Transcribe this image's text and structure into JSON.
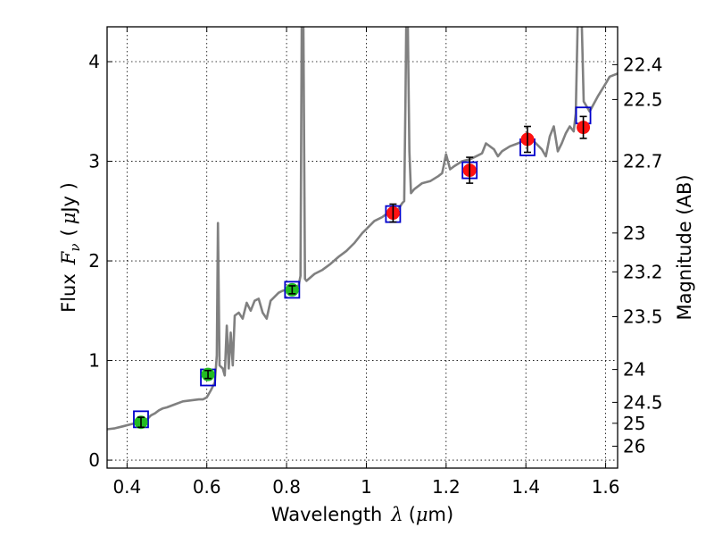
{
  "chart_data": {
    "type": "scatter",
    "xlabel": {
      "text": "Wavelength",
      "symbol": "λ",
      "unit_open": "(",
      "unit_mu": "μ",
      "unit_rest": "m)"
    },
    "ylabel": {
      "text": "Flux",
      "symbol": "F",
      "sub": "ν",
      "unit_open": "(",
      "unit_mu": "μ",
      "unit_rest": "Jy )"
    },
    "y2label": "Magnitude (AB)",
    "xlim": [
      0.35,
      1.63
    ],
    "ylim": [
      -0.08,
      4.35
    ],
    "grid": true,
    "x_ticks": [
      {
        "value": 0.4,
        "label": "0.4"
      },
      {
        "value": 0.6,
        "label": "0.6"
      },
      {
        "value": 0.8,
        "label": "0.8"
      },
      {
        "value": 1.0,
        "label": "1"
      },
      {
        "value": 1.2,
        "label": "1.2"
      },
      {
        "value": 1.4,
        "label": "1.4"
      },
      {
        "value": 1.6,
        "label": "1.6"
      }
    ],
    "y_ticks": [
      {
        "value": 0,
        "label": "0"
      },
      {
        "value": 1,
        "label": "1"
      },
      {
        "value": 2,
        "label": "2"
      },
      {
        "value": 3,
        "label": "3"
      },
      {
        "value": 4,
        "label": "4"
      }
    ],
    "y2_ticks": [
      {
        "flux": 3.97,
        "label": "22.4"
      },
      {
        "flux": 3.62,
        "label": "22.5"
      },
      {
        "flux": 3.0,
        "label": "22.7"
      },
      {
        "flux": 2.28,
        "label": "23"
      },
      {
        "flux": 1.89,
        "label": "23.2"
      },
      {
        "flux": 1.44,
        "label": "23.5"
      },
      {
        "flux": 0.91,
        "label": "24"
      },
      {
        "flux": 0.58,
        "label": "24.5"
      },
      {
        "flux": 0.37,
        "label": "25"
      },
      {
        "flux": 0.14,
        "label": "26"
      }
    ],
    "series": [
      {
        "kind": "line",
        "color": "#808080",
        "points": [
          [
            0.35,
            0.31
          ],
          [
            0.37,
            0.32
          ],
          [
            0.39,
            0.34
          ],
          [
            0.41,
            0.36
          ],
          [
            0.43,
            0.38
          ],
          [
            0.45,
            0.41
          ],
          [
            0.46,
            0.45
          ],
          [
            0.47,
            0.47
          ],
          [
            0.48,
            0.5
          ],
          [
            0.49,
            0.52
          ],
          [
            0.5,
            0.53
          ],
          [
            0.52,
            0.56
          ],
          [
            0.54,
            0.59
          ],
          [
            0.56,
            0.6
          ],
          [
            0.58,
            0.61
          ],
          [
            0.59,
            0.61
          ],
          [
            0.6,
            0.63
          ],
          [
            0.61,
            0.7
          ],
          [
            0.62,
            0.78
          ],
          [
            0.625,
            1.05
          ],
          [
            0.628,
            2.38
          ],
          [
            0.632,
            0.95
          ],
          [
            0.64,
            0.92
          ],
          [
            0.645,
            0.85
          ],
          [
            0.65,
            1.35
          ],
          [
            0.655,
            0.92
          ],
          [
            0.66,
            1.28
          ],
          [
            0.665,
            0.95
          ],
          [
            0.67,
            1.45
          ],
          [
            0.68,
            1.48
          ],
          [
            0.69,
            1.42
          ],
          [
            0.7,
            1.58
          ],
          [
            0.71,
            1.5
          ],
          [
            0.72,
            1.6
          ],
          [
            0.73,
            1.62
          ],
          [
            0.74,
            1.48
          ],
          [
            0.75,
            1.42
          ],
          [
            0.76,
            1.6
          ],
          [
            0.77,
            1.64
          ],
          [
            0.78,
            1.68
          ],
          [
            0.79,
            1.7
          ],
          [
            0.8,
            1.71
          ],
          [
            0.81,
            1.72
          ],
          [
            0.82,
            1.74
          ],
          [
            0.83,
            1.75
          ],
          [
            0.835,
            1.85
          ],
          [
            0.838,
            4.4
          ],
          [
            0.842,
            4.4
          ],
          [
            0.846,
            1.82
          ],
          [
            0.85,
            1.8
          ],
          [
            0.87,
            1.87
          ],
          [
            0.89,
            1.91
          ],
          [
            0.91,
            1.97
          ],
          [
            0.93,
            2.04
          ],
          [
            0.95,
            2.1
          ],
          [
            0.97,
            2.18
          ],
          [
            0.99,
            2.28
          ],
          [
            1.0,
            2.32
          ],
          [
            1.02,
            2.4
          ],
          [
            1.04,
            2.44
          ],
          [
            1.06,
            2.5
          ],
          [
            1.08,
            2.52
          ],
          [
            1.09,
            2.58
          ],
          [
            1.095,
            2.6
          ],
          [
            1.098,
            3.6
          ],
          [
            1.1,
            4.4
          ],
          [
            1.104,
            4.4
          ],
          [
            1.108,
            3.1
          ],
          [
            1.112,
            2.68
          ],
          [
            1.12,
            2.72
          ],
          [
            1.14,
            2.78
          ],
          [
            1.16,
            2.8
          ],
          [
            1.18,
            2.85
          ],
          [
            1.19,
            2.88
          ],
          [
            1.2,
            3.07
          ],
          [
            1.21,
            2.92
          ],
          [
            1.22,
            2.95
          ],
          [
            1.24,
            3.0
          ],
          [
            1.26,
            3.02
          ],
          [
            1.28,
            3.06
          ],
          [
            1.29,
            3.08
          ],
          [
            1.3,
            3.18
          ],
          [
            1.32,
            3.12
          ],
          [
            1.33,
            3.05
          ],
          [
            1.34,
            3.1
          ],
          [
            1.36,
            3.15
          ],
          [
            1.38,
            3.18
          ],
          [
            1.4,
            3.22
          ],
          [
            1.42,
            3.2
          ],
          [
            1.44,
            3.12
          ],
          [
            1.45,
            3.05
          ],
          [
            1.46,
            3.25
          ],
          [
            1.47,
            3.35
          ],
          [
            1.48,
            3.1
          ],
          [
            1.49,
            3.18
          ],
          [
            1.5,
            3.28
          ],
          [
            1.51,
            3.35
          ],
          [
            1.52,
            3.3
          ],
          [
            1.525,
            3.48
          ],
          [
            1.53,
            4.4
          ],
          [
            1.54,
            4.4
          ],
          [
            1.545,
            3.6
          ],
          [
            1.56,
            3.5
          ],
          [
            1.58,
            3.65
          ],
          [
            1.6,
            3.78
          ],
          [
            1.61,
            3.85
          ],
          [
            1.63,
            3.88
          ]
        ]
      },
      {
        "kind": "model-boxes",
        "color": "#0000cc",
        "points": [
          [
            0.435,
            0.41
          ],
          [
            0.603,
            0.83
          ],
          [
            0.814,
            1.71
          ],
          [
            1.067,
            2.47
          ],
          [
            1.259,
            2.91
          ],
          [
            1.404,
            3.14
          ],
          [
            1.544,
            3.46
          ]
        ]
      },
      {
        "kind": "observed-optical",
        "color": "#22bb22",
        "points": [
          {
            "x": 0.435,
            "y": 0.38,
            "err": 0.05
          },
          {
            "x": 0.603,
            "y": 0.86,
            "err": 0.04
          },
          {
            "x": 0.814,
            "y": 1.71,
            "err": 0.04
          }
        ]
      },
      {
        "kind": "observed-nir",
        "color": "#ff1111",
        "points": [
          {
            "x": 1.067,
            "y": 2.48,
            "err": 0.09
          },
          {
            "x": 1.259,
            "y": 2.91,
            "err": 0.13
          },
          {
            "x": 1.404,
            "y": 3.22,
            "err": 0.13
          },
          {
            "x": 1.544,
            "y": 3.34,
            "err": 0.11
          }
        ]
      }
    ]
  }
}
